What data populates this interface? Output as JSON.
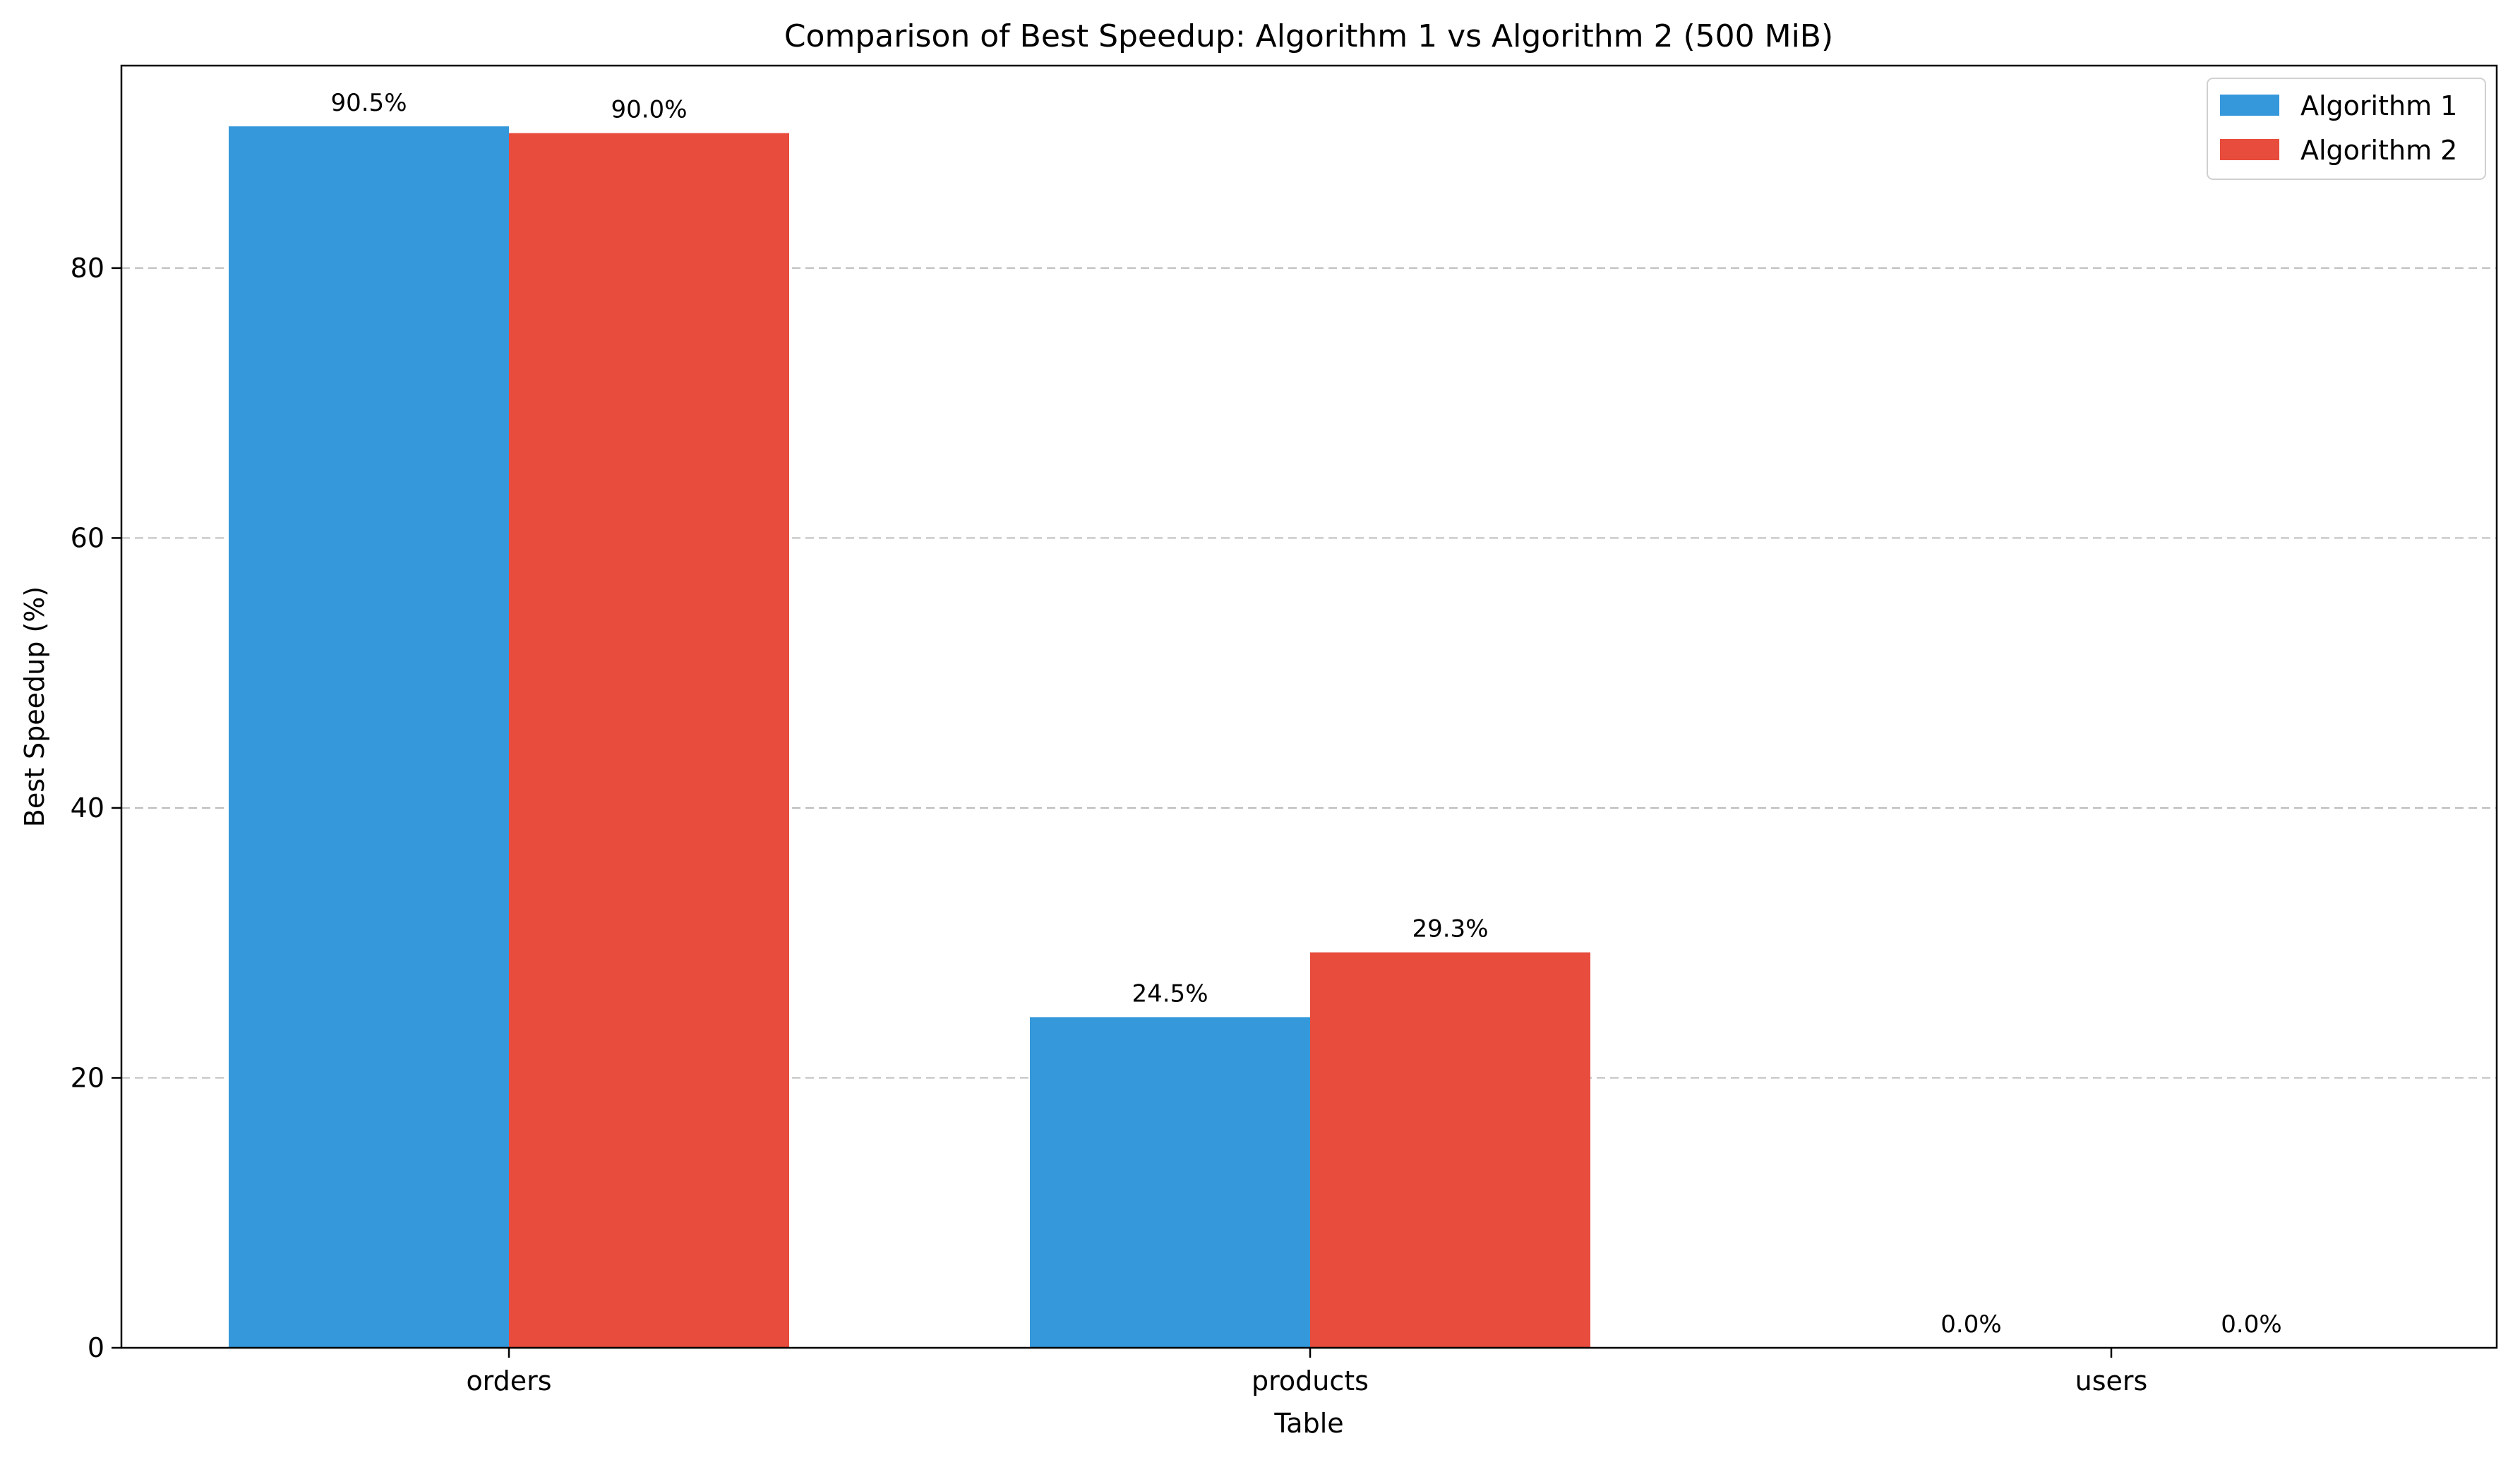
{
  "chart_data": {
    "type": "bar",
    "title": "Comparison of Best Speedup: Algorithm 1 vs Algorithm 2 (500 MiB)",
    "xlabel": "Table",
    "ylabel": "Best Speedup (%)",
    "categories": [
      "orders",
      "products",
      "users"
    ],
    "series": [
      {
        "name": "Algorithm 1",
        "color": "#3498db",
        "values": [
          90.5,
          24.5,
          0.0
        ],
        "labels": [
          "90.5%",
          "24.5%",
          "0.0%"
        ]
      },
      {
        "name": "Algorithm 2",
        "color": "#e74c3c",
        "values": [
          90.0,
          29.3,
          0.0
        ],
        "labels": [
          "90.0%",
          "29.3%",
          "0.0%"
        ]
      }
    ],
    "ylim": [
      0,
      95
    ],
    "yticks": [
      0,
      20,
      40,
      60,
      80
    ],
    "grid": "y-dashed",
    "legend": "top-right"
  }
}
